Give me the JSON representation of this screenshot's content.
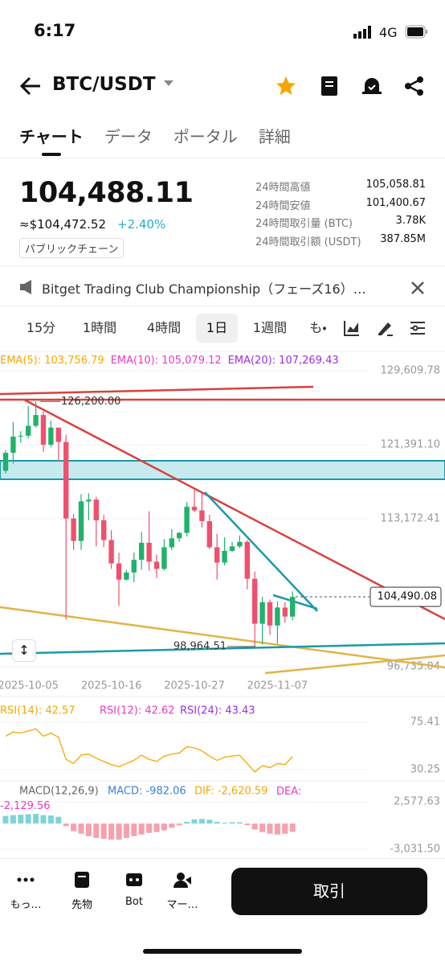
{
  "status": {
    "time": "6:17",
    "network": "4G"
  },
  "header": {
    "pair": "BTC/USDT"
  },
  "tabs": [
    "チャート",
    "データ",
    "ポータル",
    "詳細"
  ],
  "price": {
    "last": "104,488.11",
    "fiat": "≈$104,472.52",
    "change": "+2.40%",
    "tag": "パブリックチェーン"
  },
  "stats": [
    {
      "label": "24時間高値",
      "value": "105,058.81"
    },
    {
      "label": "24時間安値",
      "value": "101,400.67"
    },
    {
      "label": "24時間取引量 (BTC)",
      "value": "3.78K"
    },
    {
      "label": "24時間取引額 (USDT)",
      "value": "387.85M"
    }
  ],
  "banner": "Bitget Trading Club Championship（フェーズ16）…",
  "intervals": [
    "15分",
    "1時間",
    "4時間",
    "1日",
    "1週間",
    "も・"
  ],
  "chart": {
    "ema_legend": [
      "EMA(5): 103,756.79",
      "EMA(10): 105,079.12",
      "EMA(20): 107,269.43"
    ],
    "ylim": [
      95300,
      131500
    ],
    "yticks": [
      {
        "value": 129609.78,
        "label": "129,609.78"
      },
      {
        "value": 121391.1,
        "label": "121,391.10"
      },
      {
        "value": 113172.41,
        "label": "113,172.41"
      },
      {
        "value": 96735.04,
        "label": "96,735.04"
      }
    ],
    "current": {
      "value": 104490.08,
      "label": "104,490.08"
    },
    "high": {
      "value": 126200.0,
      "label": "126,200.00"
    },
    "low": {
      "value": 98964.51,
      "label": "98,964.51"
    },
    "x_labels": [
      "2025-10-05",
      "2025-10-16",
      "2025-10-27",
      "2025-11-07"
    ],
    "up_color": "#20b26c",
    "down_color": "#f0506e",
    "candles": [
      [
        118500,
        120800,
        118200,
        120500
      ],
      [
        120500,
        123900,
        119300,
        122300
      ],
      [
        122300,
        122900,
        121600,
        122400
      ],
      [
        122400,
        125700,
        122100,
        123500
      ],
      [
        123500,
        126200,
        123300,
        124700
      ],
      [
        124700,
        125100,
        120600,
        121400
      ],
      [
        121400,
        124100,
        121100,
        123300
      ],
      [
        123300,
        123300,
        119600,
        121700
      ],
      [
        121700,
        122500,
        102000,
        113200
      ],
      [
        113200,
        113700,
        109700,
        110700
      ],
      [
        110700,
        115900,
        109700,
        115100
      ],
      [
        115100,
        116000,
        113000,
        115300
      ],
      [
        115300,
        115600,
        110100,
        113000
      ],
      [
        113000,
        113600,
        110000,
        110800
      ],
      [
        110800,
        111900,
        107600,
        108200
      ],
      [
        108200,
        109400,
        103500,
        106400
      ],
      [
        106400,
        107500,
        106300,
        107200
      ],
      [
        107200,
        109400,
        106100,
        108600
      ],
      [
        108600,
        111700,
        107500,
        110500
      ],
      [
        110500,
        114000,
        107400,
        108400
      ],
      [
        108400,
        109200,
        106600,
        107600
      ],
      [
        107600,
        110900,
        107400,
        110000
      ],
      [
        110000,
        112000,
        109700,
        111000
      ],
      [
        111000,
        111700,
        110600,
        111600
      ],
      [
        111600,
        115000,
        111200,
        114500
      ],
      [
        114500,
        116400,
        113900,
        114100
      ],
      [
        114100,
        116000,
        112200,
        112900
      ],
      [
        112900,
        113600,
        109800,
        110000
      ],
      [
        110000,
        111500,
        106400,
        108300
      ],
      [
        108300,
        111100,
        108000,
        109600
      ],
      [
        109600,
        110600,
        109500,
        110100
      ],
      [
        110100,
        111300,
        109900,
        110600
      ],
      [
        110600,
        110800,
        105300,
        106500
      ],
      [
        106500,
        107300,
        98964.51,
        101500
      ],
      [
        101500,
        104500,
        99200,
        103900
      ],
      [
        103900,
        104200,
        100300,
        101300
      ],
      [
        101300,
        104000,
        99300,
        103300
      ],
      [
        103300,
        103900,
        101600,
        102300
      ],
      [
        102300,
        105100,
        101900,
        104488.11
      ]
    ]
  },
  "rsi": {
    "legend": [
      "RSI(14): 42.57",
      "RSI(12): 42.62",
      "RSI(24): 43.43"
    ],
    "ylim": [
      21.8,
      91.5
    ],
    "yticks": [
      75.41,
      30.25
    ],
    "color": "#f7a600",
    "values": [
      62,
      66,
      65,
      67,
      69,
      62,
      65,
      61,
      40,
      36,
      44,
      45,
      41,
      38,
      35,
      33,
      36,
      39,
      44,
      40,
      38,
      43,
      45,
      46,
      52,
      51,
      48,
      43,
      39,
      42,
      43,
      44,
      36,
      28,
      34,
      32,
      36,
      35,
      42.57
    ]
  },
  "macd": {
    "legend": [
      "MACD(12,26,9)",
      "MACD: -982.06",
      "DIF: -2,620.59",
      "DEA: -2,129.56"
    ],
    "ylim": [
      -3887,
      4194
    ],
    "yticks": [
      {
        "value": 2577.63,
        "label": "2,577.63"
      },
      {
        "value": -3031.5,
        "label": "-3,031.50"
      }
    ],
    "up_color": "#7fd3d8",
    "down_color": "#f7a1ad",
    "values": [
      900,
      1000,
      1050,
      1100,
      1150,
      1000,
      950,
      800,
      -300,
      -900,
      -1200,
      -1500,
      -1700,
      -1800,
      -1900,
      -1900,
      -1700,
      -1500,
      -1300,
      -1100,
      -1000,
      -800,
      -500,
      -200,
      200,
      500,
      550,
      450,
      200,
      100,
      150,
      150,
      -200,
      -700,
      -1000,
      -1200,
      -1300,
      -1200,
      -982.06
    ]
  },
  "nav": [
    "もっ…",
    "先物",
    "Bot",
    "マー…"
  ],
  "trade": "取引"
}
